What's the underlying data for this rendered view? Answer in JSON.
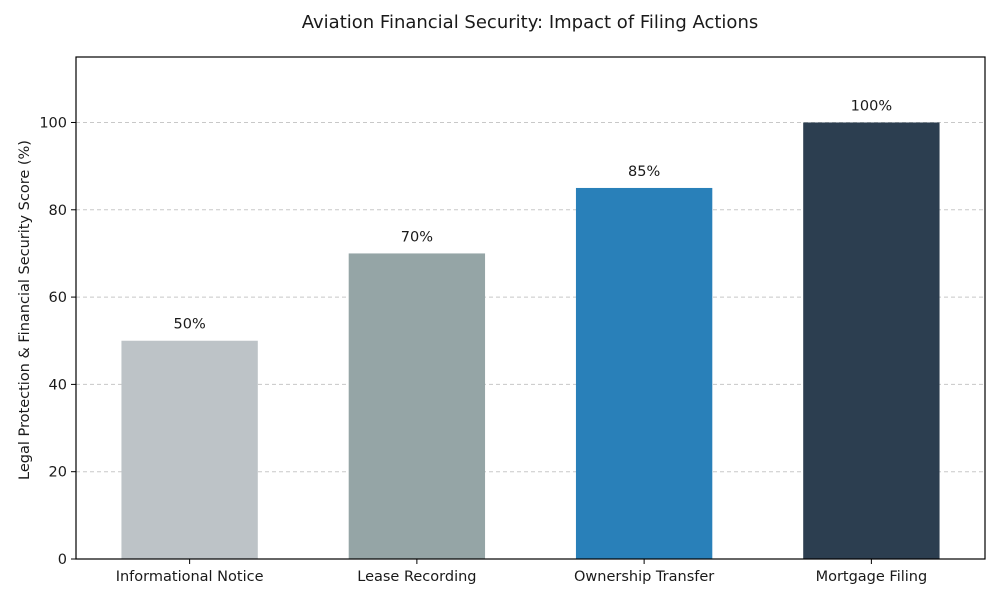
{
  "chart_data": {
    "type": "bar",
    "title": "Aviation Financial Security: Impact of Filing Actions",
    "xlabel": "",
    "ylabel": "Legal Protection & Financial Security Score (%)",
    "categories": [
      "Informational Notice",
      "Lease Recording",
      "Ownership Transfer",
      "Mortgage Filing"
    ],
    "values": [
      50,
      70,
      85,
      100
    ],
    "data_labels": [
      "50%",
      "70%",
      "85%",
      "100%"
    ],
    "colors": [
      "#bdc3c7",
      "#95a5a6",
      "#2980b9",
      "#2c3e50"
    ],
    "ylim": [
      0,
      115
    ],
    "yticks": [
      0,
      20,
      40,
      60,
      80,
      100
    ],
    "ytick_labels": [
      "0",
      "20",
      "40",
      "60",
      "80",
      "100"
    ],
    "grid": "y-dashed",
    "legend": "none"
  }
}
